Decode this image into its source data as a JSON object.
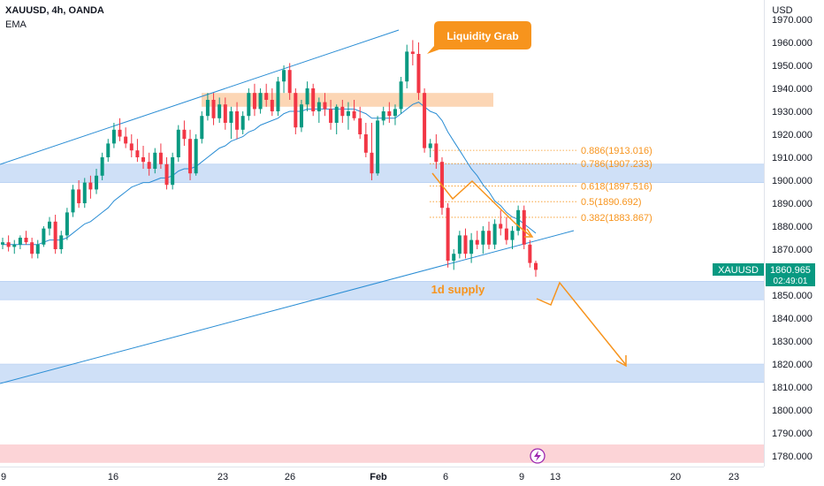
{
  "header": {
    "symbol": "XAUUSD, 4h, OANDA",
    "indicator": "EMA"
  },
  "price_scale": {
    "currency": "USD"
  },
  "last_price": {
    "ticker": "XAUUSD",
    "price": "1860.965",
    "countdown": "02:49:01",
    "color": "#089981"
  },
  "annotations": {
    "callout": "Liquidity Grab",
    "supply_label": "1d supply"
  },
  "colors": {
    "up": "#089981",
    "down": "#f23645",
    "ema": "#2a8dd4",
    "zone": "#cfe0f7",
    "orange": "#f7941d"
  },
  "chart_data": {
    "type": "candlestick",
    "title": "XAUUSD, 4h, OANDA",
    "ylabel": "USD",
    "ylim": [
      1775,
      1975
    ],
    "y_ticks": [
      "1970.000",
      "1960.000",
      "1950.000",
      "1940.000",
      "1930.000",
      "1920.000",
      "1910.000",
      "1900.000",
      "1890.000",
      "1880.000",
      "1870.000",
      "1860.000",
      "1850.000",
      "1840.000",
      "1830.000",
      "1820.000",
      "1810.000",
      "1800.000",
      "1790.000",
      "1780.000"
    ],
    "x_ticks": [
      "9",
      "16",
      "23",
      "26",
      "Feb",
      "6",
      "9",
      "13",
      "20",
      "23"
    ],
    "fibonacci": [
      {
        "label": "0.886(1913.016)",
        "level": 1913.016
      },
      {
        "label": "0.786(1907.233)",
        "level": 1907.233
      },
      {
        "label": "0.618(1897.516)",
        "level": 1897.516
      },
      {
        "label": "0.5(1890.692)",
        "level": 1890.692
      },
      {
        "label": "0.382(1883.867)",
        "level": 1883.867
      }
    ],
    "zones": [
      {
        "from": 1899,
        "to": 1907
      },
      {
        "from": 1848,
        "to": 1856
      },
      {
        "from": 1812,
        "to": 1820
      }
    ],
    "red_zone": {
      "from": 1777,
      "to": 1785
    },
    "orange_zone": {
      "from": 1932,
      "to": 1938
    },
    "candles": [
      [
        1872,
        1875,
        1870,
        1873
      ],
      [
        1873,
        1876,
        1869,
        1871
      ],
      [
        1871,
        1874,
        1868,
        1872
      ],
      [
        1872,
        1876,
        1870,
        1875
      ],
      [
        1875,
        1878,
        1872,
        1873
      ],
      [
        1873,
        1875,
        1866,
        1868
      ],
      [
        1868,
        1874,
        1866,
        1872
      ],
      [
        1872,
        1880,
        1871,
        1879
      ],
      [
        1879,
        1884,
        1876,
        1882
      ],
      [
        1882,
        1885,
        1868,
        1870
      ],
      [
        1870,
        1878,
        1868,
        1876
      ],
      [
        1876,
        1888,
        1874,
        1886
      ],
      [
        1886,
        1898,
        1884,
        1896
      ],
      [
        1896,
        1900,
        1888,
        1890
      ],
      [
        1890,
        1901,
        1888,
        1899
      ],
      [
        1899,
        1902,
        1892,
        1896
      ],
      [
        1896,
        1905,
        1894,
        1902
      ],
      [
        1902,
        1912,
        1900,
        1910
      ],
      [
        1910,
        1918,
        1908,
        1916
      ],
      [
        1916,
        1925,
        1914,
        1922
      ],
      [
        1922,
        1927,
        1917,
        1919
      ],
      [
        1919,
        1923,
        1914,
        1916
      ],
      [
        1916,
        1920,
        1910,
        1913
      ],
      [
        1913,
        1918,
        1908,
        1910
      ],
      [
        1910,
        1915,
        1905,
        1908
      ],
      [
        1908,
        1912,
        1902,
        1905
      ],
      [
        1905,
        1914,
        1903,
        1912
      ],
      [
        1912,
        1916,
        1905,
        1907
      ],
      [
        1907,
        1910,
        1896,
        1898
      ],
      [
        1898,
        1912,
        1896,
        1910
      ],
      [
        1910,
        1924,
        1908,
        1922
      ],
      [
        1922,
        1926,
        1915,
        1918
      ],
      [
        1918,
        1922,
        1900,
        1903
      ],
      [
        1903,
        1920,
        1902,
        1918
      ],
      [
        1918,
        1930,
        1916,
        1928
      ],
      [
        1928,
        1938,
        1926,
        1935
      ],
      [
        1935,
        1938,
        1924,
        1927
      ],
      [
        1927,
        1936,
        1925,
        1933
      ],
      [
        1933,
        1936,
        1922,
        1925
      ],
      [
        1925,
        1932,
        1918,
        1930
      ],
      [
        1930,
        1934,
        1918,
        1922
      ],
      [
        1922,
        1930,
        1920,
        1928
      ],
      [
        1928,
        1940,
        1926,
        1938
      ],
      [
        1938,
        1942,
        1928,
        1931
      ],
      [
        1931,
        1940,
        1929,
        1938
      ],
      [
        1938,
        1942,
        1932,
        1935
      ],
      [
        1935,
        1940,
        1928,
        1930
      ],
      [
        1930,
        1945,
        1928,
        1943
      ],
      [
        1943,
        1950,
        1938,
        1948
      ],
      [
        1948,
        1951,
        1935,
        1938
      ],
      [
        1938,
        1940,
        1920,
        1923
      ],
      [
        1923,
        1935,
        1921,
        1933
      ],
      [
        1933,
        1943,
        1930,
        1940
      ],
      [
        1940,
        1942,
        1928,
        1930
      ],
      [
        1930,
        1936,
        1925,
        1934
      ],
      [
        1934,
        1938,
        1928,
        1931
      ],
      [
        1931,
        1935,
        1922,
        1925
      ],
      [
        1925,
        1933,
        1920,
        1932
      ],
      [
        1932,
        1935,
        1925,
        1928
      ],
      [
        1928,
        1934,
        1922,
        1930
      ],
      [
        1930,
        1935,
        1926,
        1927
      ],
      [
        1927,
        1932,
        1918,
        1920
      ],
      [
        1920,
        1925,
        1910,
        1912
      ],
      [
        1912,
        1925,
        1900,
        1903
      ],
      [
        1903,
        1928,
        1902,
        1926
      ],
      [
        1926,
        1932,
        1924,
        1930
      ],
      [
        1930,
        1934,
        1925,
        1928
      ],
      [
        1928,
        1933,
        1924,
        1931
      ],
      [
        1931,
        1945,
        1929,
        1943
      ],
      [
        1943,
        1959,
        1940,
        1956
      ],
      [
        1956,
        1961,
        1950,
        1955
      ],
      [
        1955,
        1960,
        1935,
        1938
      ],
      [
        1938,
        1940,
        1912,
        1914
      ],
      [
        1914,
        1918,
        1910,
        1916
      ],
      [
        1916,
        1920,
        1905,
        1908
      ],
      [
        1908,
        1910,
        1885,
        1888
      ],
      [
        1888,
        1890,
        1862,
        1865
      ],
      [
        1865,
        1870,
        1861,
        1868
      ],
      [
        1868,
        1878,
        1866,
        1876
      ],
      [
        1876,
        1879,
        1866,
        1868
      ],
      [
        1868,
        1877,
        1864,
        1874
      ],
      [
        1874,
        1878,
        1870,
        1872
      ],
      [
        1872,
        1880,
        1868,
        1878
      ],
      [
        1878,
        1882,
        1870,
        1872
      ],
      [
        1872,
        1883,
        1870,
        1881
      ],
      [
        1881,
        1887,
        1876,
        1879
      ],
      [
        1879,
        1884,
        1872,
        1874
      ],
      [
        1874,
        1880,
        1870,
        1878
      ],
      [
        1878,
        1889,
        1876,
        1887
      ],
      [
        1887,
        1889,
        1870,
        1872
      ],
      [
        1872,
        1874,
        1862,
        1864
      ],
      [
        1864,
        1865,
        1858,
        1861
      ]
    ],
    "ema": [
      1872,
      1872,
      1872,
      1872,
      1872,
      1872,
      1872,
      1873,
      1874,
      1874,
      1874,
      1875,
      1877,
      1879,
      1881,
      1882,
      1884,
      1886,
      1888,
      1891,
      1893,
      1895,
      1897,
      1898,
      1899,
      1899,
      1900,
      1901,
      1901,
      1902,
      1904,
      1905,
      1905,
      1906,
      1908,
      1910,
      1912,
      1914,
      1915,
      1917,
      1918,
      1919,
      1921,
      1922,
      1924,
      1925,
      1926,
      1927,
      1929,
      1930,
      1930,
      1930,
      1931,
      1931,
      1931,
      1931,
      1931,
      1931,
      1931,
      1931,
      1931,
      1930,
      1929,
      1927,
      1927,
      1927,
      1927,
      1927,
      1929,
      1931,
      1933,
      1934,
      1932,
      1930,
      1929,
      1926,
      1921,
      1917,
      1913,
      1909,
      1905,
      1902,
      1898,
      1895,
      1891,
      1889,
      1886,
      1884,
      1883,
      1881,
      1879,
      1877
    ]
  }
}
